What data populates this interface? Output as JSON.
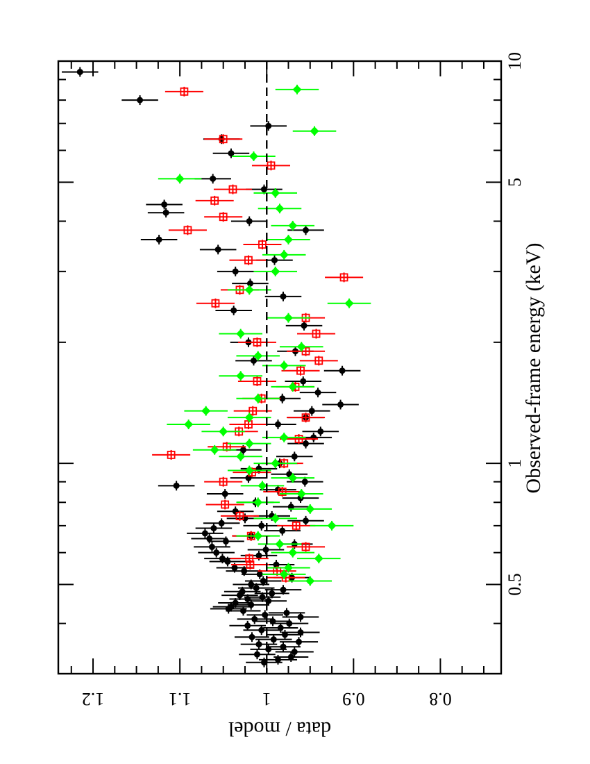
{
  "chart_data": {
    "type": "scatter",
    "title": "",
    "xlabel": "Observed-frame energy  (keV)",
    "ylabel": "data / model",
    "x_scale": "log",
    "xlim": [
      0.3,
      10
    ],
    "ylim": [
      0.73,
      1.24
    ],
    "x_ticks": [
      {
        "value": 0.5,
        "label": "0.5"
      },
      {
        "value": 1,
        "label": "1"
      },
      {
        "value": 5,
        "label": "5"
      },
      {
        "value": 10,
        "label": "10"
      }
    ],
    "y_ticks": [
      {
        "value": 1.2,
        "label": "1.2"
      },
      {
        "value": 1.1,
        "label": "1.1"
      },
      {
        "value": 1.0,
        "label": "1"
      },
      {
        "value": 0.9,
        "label": "0.9"
      },
      {
        "value": 0.8,
        "label": "0.8"
      }
    ],
    "reference_line": {
      "y": 1.0,
      "style": "dashed"
    },
    "grid": false,
    "legend": "none",
    "orientation": "rotated 90° (energy axis runs top-to-bottom on the page)",
    "series": [
      {
        "color": "#000000",
        "marker": "circle",
        "points": [
          [
            0.32,
            1.003,
            0.021
          ],
          [
            0.325,
            0.987,
            0.022
          ],
          [
            0.33,
            0.972,
            0.02
          ],
          [
            0.335,
            1.011,
            0.021
          ],
          [
            0.34,
            0.968,
            0.022
          ],
          [
            0.345,
            0.998,
            0.021
          ],
          [
            0.35,
            0.981,
            0.02
          ],
          [
            0.355,
            1.009,
            0.021
          ],
          [
            0.36,
            0.963,
            0.022
          ],
          [
            0.365,
            0.992,
            0.021
          ],
          [
            0.37,
            1.017,
            0.02
          ],
          [
            0.375,
            0.979,
            0.021
          ],
          [
            0.38,
            0.961,
            0.022
          ],
          [
            0.385,
            1.006,
            0.021
          ],
          [
            0.39,
            0.984,
            0.02
          ],
          [
            0.395,
            1.022,
            0.021
          ],
          [
            0.4,
            0.974,
            0.022
          ],
          [
            0.405,
            0.993,
            0.021
          ],
          [
            0.41,
            1.014,
            0.02
          ],
          [
            0.415,
            0.961,
            0.021
          ],
          [
            0.42,
            1.002,
            0.021
          ],
          [
            0.425,
            0.977,
            0.021
          ],
          [
            0.43,
            1.027,
            0.02
          ],
          [
            0.435,
            1.044,
            0.021
          ],
          [
            0.44,
            1.041,
            0.021
          ],
          [
            0.445,
            1.018,
            0.021
          ],
          [
            0.45,
            1.036,
            0.02
          ],
          [
            0.455,
            0.998,
            0.021
          ],
          [
            0.46,
            1.022,
            0.021
          ],
          [
            0.465,
            1.005,
            0.021
          ],
          [
            0.47,
            1.031,
            0.021
          ],
          [
            0.475,
            0.994,
            0.02
          ],
          [
            0.48,
            1.028,
            0.021
          ],
          [
            0.485,
            0.981,
            0.021
          ],
          [
            0.49,
            1.012,
            0.021
          ],
          [
            0.5,
            1.018,
            0.021
          ],
          [
            0.51,
            1.004,
            0.021
          ],
          [
            0.52,
            0.971,
            0.021
          ],
          [
            0.53,
            1.008,
            0.021
          ],
          [
            0.54,
            1.026,
            0.021
          ],
          [
            0.55,
            1.037,
            0.021
          ],
          [
            0.56,
            0.989,
            0.021
          ],
          [
            0.57,
            1.045,
            0.021
          ],
          [
            0.58,
            1.051,
            0.021
          ],
          [
            0.59,
            1.009,
            0.021
          ],
          [
            0.6,
            1.058,
            0.021
          ],
          [
            0.61,
            1.001,
            0.021
          ],
          [
            0.62,
            1.063,
            0.021
          ],
          [
            0.63,
            0.968,
            0.021
          ],
          [
            0.64,
            1.047,
            0.021
          ],
          [
            0.65,
            1.066,
            0.021
          ],
          [
            0.66,
            1.018,
            0.021
          ],
          [
            0.67,
            1.071,
            0.021
          ],
          [
            0.68,
            0.982,
            0.021
          ],
          [
            0.69,
            1.061,
            0.021
          ],
          [
            0.7,
            1.006,
            0.021
          ],
          [
            0.71,
            1.052,
            0.021
          ],
          [
            0.72,
            0.955,
            0.021
          ],
          [
            0.73,
            1.025,
            0.021
          ],
          [
            0.74,
            0.994,
            0.021
          ],
          [
            0.76,
            1.036,
            0.021
          ],
          [
            0.78,
            0.972,
            0.021
          ],
          [
            0.8,
            1.013,
            0.021
          ],
          [
            0.82,
            0.961,
            0.021
          ],
          [
            0.84,
            1.048,
            0.021
          ],
          [
            0.86,
            0.987,
            0.021
          ],
          [
            0.88,
            1.104,
            0.021
          ],
          [
            0.9,
            0.956,
            0.021
          ],
          [
            0.92,
            1.021,
            0.021
          ],
          [
            0.94,
            0.974,
            0.021
          ],
          [
            0.97,
            1.009,
            0.021
          ],
          [
            1.0,
            0.985,
            0.021
          ],
          [
            1.04,
            0.968,
            0.021
          ],
          [
            1.08,
            1.027,
            0.021
          ],
          [
            1.12,
            0.955,
            0.021
          ],
          [
            1.16,
            0.946,
            0.021
          ],
          [
            1.2,
            0.938,
            0.021
          ],
          [
            1.25,
            0.987,
            0.021
          ],
          [
            1.3,
            0.955,
            0.021
          ],
          [
            1.35,
            0.948,
            0.021
          ],
          [
            1.4,
            0.915,
            0.021
          ],
          [
            1.45,
            0.982,
            0.021
          ],
          [
            1.5,
            0.941,
            0.021
          ],
          [
            1.6,
            0.958,
            0.021
          ],
          [
            1.7,
            0.913,
            0.021
          ],
          [
            1.8,
            1.015,
            0.021
          ],
          [
            1.9,
            0.967,
            0.021
          ],
          [
            2.0,
            1.021,
            0.021
          ],
          [
            2.2,
            0.957,
            0.021
          ],
          [
            2.4,
            1.038,
            0.021
          ],
          [
            2.6,
            0.981,
            0.021
          ],
          [
            2.8,
            1.019,
            0.021
          ],
          [
            3.0,
            1.036,
            0.021
          ],
          [
            3.2,
            0.991,
            0.021
          ],
          [
            3.4,
            1.056,
            0.021
          ],
          [
            3.6,
            1.124,
            0.021
          ],
          [
            3.8,
            0.955,
            0.021
          ],
          [
            4.0,
            1.02,
            0.021
          ],
          [
            4.2,
            1.116,
            0.021
          ],
          [
            4.4,
            1.118,
            0.021
          ],
          [
            4.8,
            1.003,
            0.021
          ],
          [
            5.1,
            1.062,
            0.021
          ],
          [
            5.9,
            1.041,
            0.021
          ],
          [
            6.4,
            1.052,
            0.021
          ],
          [
            6.9,
            0.998,
            0.021
          ],
          [
            8.0,
            1.146,
            0.021
          ],
          [
            9.4,
            1.215,
            0.021
          ]
        ]
      },
      {
        "color": "#ff0000",
        "marker": "open-square",
        "points": [
          [
            0.52,
            0.978,
            0.022
          ],
          [
            0.54,
            0.988,
            0.022
          ],
          [
            0.56,
            1.019,
            0.022
          ],
          [
            0.58,
            1.02,
            0.022
          ],
          [
            0.62,
            0.955,
            0.022
          ],
          [
            0.66,
            1.018,
            0.022
          ],
          [
            0.7,
            0.966,
            0.022
          ],
          [
            0.74,
            1.031,
            0.022
          ],
          [
            0.79,
            1.048,
            0.022
          ],
          [
            0.85,
            0.982,
            0.022
          ],
          [
            0.9,
            1.05,
            0.022
          ],
          [
            0.95,
            1.017,
            0.022
          ],
          [
            1.0,
            0.98,
            0.022
          ],
          [
            1.05,
            1.11,
            0.022
          ],
          [
            1.1,
            1.046,
            0.022
          ],
          [
            1.15,
            0.963,
            0.022
          ],
          [
            1.2,
            1.032,
            0.022
          ],
          [
            1.25,
            1.021,
            0.022
          ],
          [
            1.3,
            0.955,
            0.022
          ],
          [
            1.35,
            1.016,
            0.022
          ],
          [
            1.45,
            1.006,
            0.022
          ],
          [
            1.55,
            0.967,
            0.022
          ],
          [
            1.6,
            1.011,
            0.022
          ],
          [
            1.7,
            0.961,
            0.022
          ],
          [
            1.8,
            0.94,
            0.022
          ],
          [
            1.9,
            0.955,
            0.022
          ],
          [
            2.0,
            1.011,
            0.022
          ],
          [
            2.1,
            0.943,
            0.022
          ],
          [
            2.3,
            0.955,
            0.022
          ],
          [
            2.5,
            1.059,
            0.022
          ],
          [
            2.7,
            1.031,
            0.022
          ],
          [
            2.9,
            0.911,
            0.022
          ],
          [
            3.2,
            1.021,
            0.022
          ],
          [
            3.5,
            1.005,
            0.022
          ],
          [
            3.8,
            1.091,
            0.022
          ],
          [
            4.1,
            1.05,
            0.022
          ],
          [
            4.5,
            1.06,
            0.022
          ],
          [
            4.8,
            1.039,
            0.022
          ],
          [
            5.5,
            0.995,
            0.022
          ],
          [
            6.4,
            1.05,
            0.022
          ],
          [
            8.4,
            1.095,
            0.022
          ]
        ]
      },
      {
        "color": "#00ff00",
        "marker": "filled-diamond",
        "points": [
          [
            0.51,
            0.95,
            0.025
          ],
          [
            0.53,
            0.98,
            0.025
          ],
          [
            0.55,
            0.975,
            0.025
          ],
          [
            0.58,
            0.94,
            0.025
          ],
          [
            0.6,
            0.97,
            0.025
          ],
          [
            0.63,
            0.985,
            0.025
          ],
          [
            0.66,
            1.01,
            0.025
          ],
          [
            0.7,
            0.925,
            0.025
          ],
          [
            0.73,
            0.99,
            0.025
          ],
          [
            0.77,
            0.95,
            0.025
          ],
          [
            0.8,
            1.01,
            0.025
          ],
          [
            0.84,
            0.96,
            0.025
          ],
          [
            0.88,
            1.005,
            0.025
          ],
          [
            0.92,
            0.97,
            0.025
          ],
          [
            0.96,
            1.02,
            0.025
          ],
          [
            1.0,
            0.99,
            0.025
          ],
          [
            1.04,
            1.03,
            0.025
          ],
          [
            1.08,
            1.06,
            0.025
          ],
          [
            1.12,
            1.02,
            0.025
          ],
          [
            1.16,
            0.98,
            0.025
          ],
          [
            1.2,
            1.05,
            0.025
          ],
          [
            1.25,
            1.09,
            0.025
          ],
          [
            1.3,
            1.02,
            0.025
          ],
          [
            1.35,
            1.07,
            0.025
          ],
          [
            1.45,
            1.01,
            0.025
          ],
          [
            1.55,
            0.97,
            0.025
          ],
          [
            1.65,
            1.03,
            0.025
          ],
          [
            1.75,
            0.98,
            0.025
          ],
          [
            1.85,
            1.01,
            0.025
          ],
          [
            1.95,
            0.96,
            0.025
          ],
          [
            2.1,
            1.03,
            0.025
          ],
          [
            2.3,
            0.975,
            0.025
          ],
          [
            2.5,
            0.905,
            0.025
          ],
          [
            2.7,
            1.02,
            0.025
          ],
          [
            3.0,
            0.99,
            0.025
          ],
          [
            3.3,
            0.98,
            0.025
          ],
          [
            3.6,
            0.975,
            0.025
          ],
          [
            3.9,
            0.97,
            0.025
          ],
          [
            4.3,
            0.985,
            0.025
          ],
          [
            4.7,
            0.99,
            0.025
          ],
          [
            5.1,
            1.1,
            0.025
          ],
          [
            5.8,
            1.015,
            0.025
          ],
          [
            6.7,
            0.945,
            0.025
          ],
          [
            8.5,
            0.965,
            0.025
          ]
        ]
      }
    ]
  }
}
